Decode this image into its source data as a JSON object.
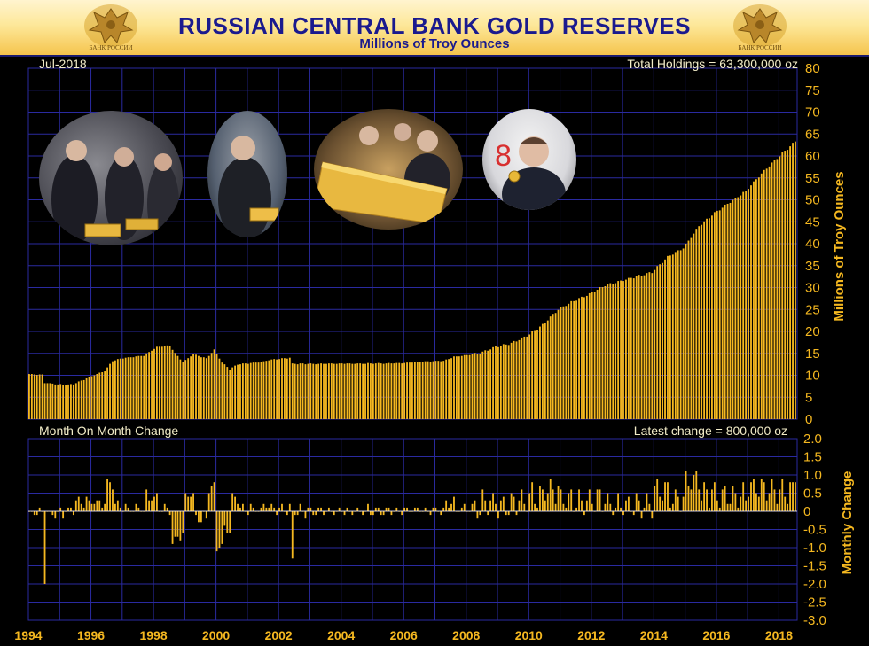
{
  "header": {
    "title": "RUSSIAN CENTRAL BANK GOLD RESERVES",
    "subtitle": "Millions of Troy Ounces",
    "emblem_text": "БАНК РОССИИ"
  },
  "colors": {
    "bar": "#f5b820",
    "grid": "#2a2aa0",
    "background": "#000000",
    "title": "#1a1a8e",
    "annotation": "#f2ecc8"
  },
  "photos": [
    {
      "name": "officials-with-gold-bars-photo"
    },
    {
      "name": "putin-with-gold-bar-photo"
    },
    {
      "name": "officials-viewing-gold-bar-photo"
    },
    {
      "name": "medvedev-with-gold-coin-photo"
    }
  ],
  "chart_data": [
    {
      "type": "bar",
      "ylabel": "Millions of Troy Ounces",
      "ylim": [
        0,
        80
      ],
      "yticks": [
        "0",
        "5",
        "10",
        "15",
        "20",
        "25",
        "30",
        "35",
        "40",
        "45",
        "50",
        "55",
        "60",
        "65",
        "70",
        "75",
        "80"
      ],
      "annotation_left": "Jul-2018",
      "annotation_right": "Total Holdings = 63,300,000 oz",
      "x_start": "1994-01",
      "x_end": "2018-07",
      "grid": true,
      "series_keypoints": [
        [
          "1994-01",
          10.3
        ],
        [
          "1994-06",
          10.1
        ],
        [
          "1994-07",
          8.3
        ],
        [
          "1995-02",
          7.8
        ],
        [
          "1995-06",
          8.0
        ],
        [
          "1996-01",
          9.8
        ],
        [
          "1996-06",
          11.0
        ],
        [
          "1996-09",
          13.3
        ],
        [
          "1997-01",
          13.9
        ],
        [
          "1997-09",
          14.5
        ],
        [
          "1998-02",
          16.4
        ],
        [
          "1998-07",
          16.8
        ],
        [
          "1998-09",
          15.0
        ],
        [
          "1998-12",
          13.0
        ],
        [
          "1999-04",
          14.8
        ],
        [
          "1999-09",
          13.8
        ],
        [
          "1999-12",
          15.8
        ],
        [
          "2000-03",
          12.9
        ],
        [
          "2000-06",
          11.4
        ],
        [
          "2000-09",
          12.5
        ],
        [
          "2001-06",
          13.0
        ],
        [
          "2001-09",
          13.5
        ],
        [
          "2002-05",
          14.0
        ],
        [
          "2002-06",
          12.6
        ],
        [
          "2005-06",
          12.7
        ],
        [
          "2006-01",
          12.8
        ],
        [
          "2006-07",
          13.1
        ],
        [
          "2007-04",
          13.3
        ],
        [
          "2007-08",
          14.2
        ],
        [
          "2008-06",
          15.0
        ],
        [
          "2008-12",
          16.5
        ],
        [
          "2009-06",
          17.3
        ],
        [
          "2009-12",
          19.0
        ],
        [
          "2010-06",
          21.5
        ],
        [
          "2010-12",
          25.0
        ],
        [
          "2011-06",
          27.0
        ],
        [
          "2011-12",
          28.5
        ],
        [
          "2012-06",
          30.5
        ],
        [
          "2012-12",
          31.5
        ],
        [
          "2013-06",
          32.5
        ],
        [
          "2013-12",
          33.5
        ],
        [
          "2014-06",
          37.0
        ],
        [
          "2014-12",
          39.0
        ],
        [
          "2015-06",
          44.0
        ],
        [
          "2015-12",
          47.0
        ],
        [
          "2016-06",
          49.5
        ],
        [
          "2016-12",
          52.0
        ],
        [
          "2017-06",
          56.0
        ],
        [
          "2017-12",
          59.5
        ],
        [
          "2018-07",
          63.3
        ]
      ]
    },
    {
      "type": "bar",
      "ylabel": "Monthly Change",
      "ylim": [
        -3.0,
        2.0
      ],
      "yticks": [
        "2.0",
        "1.5",
        "1.0",
        "0.5",
        "0",
        "-0.5",
        "-1.0",
        "-1.5",
        "-2.0",
        "-2.5",
        "-3.0"
      ],
      "annotation_left": "Month On Month Change",
      "annotation_right": "Latest change = 800,000 oz",
      "grid": true,
      "note": "Monthly change of the holdings series above"
    }
  ],
  "x_axis": {
    "tick_labels": [
      "1994",
      "1996",
      "1998",
      "2000",
      "2002",
      "2004",
      "2006",
      "2008",
      "2010",
      "2012",
      "2014",
      "2016",
      "2018"
    ]
  }
}
